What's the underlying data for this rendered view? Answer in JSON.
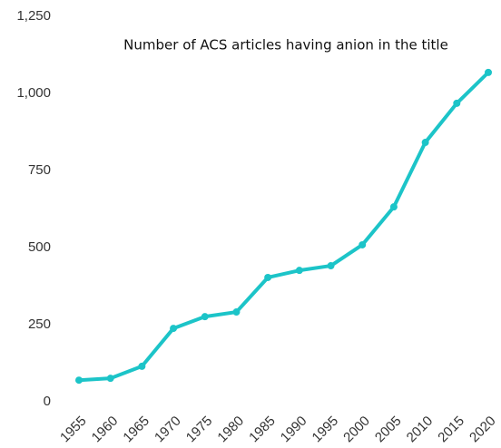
{
  "chart_data": {
    "type": "line",
    "title": "Number of ACS articles having anion in the title",
    "x": [
      1955,
      1960,
      1965,
      1970,
      1975,
      1980,
      1985,
      1990,
      1995,
      2000,
      2005,
      2010,
      2015,
      2020
    ],
    "series": [
      {
        "color": "#1cc4c8",
        "values": [
          70,
          76,
          115,
          238,
          276,
          291,
          403,
          426,
          441,
          509,
          632,
          841,
          968,
          1068
        ]
      }
    ],
    "xlim": [
      1955,
      2020
    ],
    "ylim": [
      0,
      1250
    ],
    "yticks": [
      0,
      250,
      500,
      750,
      {
        "value": 1000,
        "label": "1,000"
      },
      {
        "value": 1250,
        "label": "1,250"
      }
    ],
    "grid": false
  }
}
